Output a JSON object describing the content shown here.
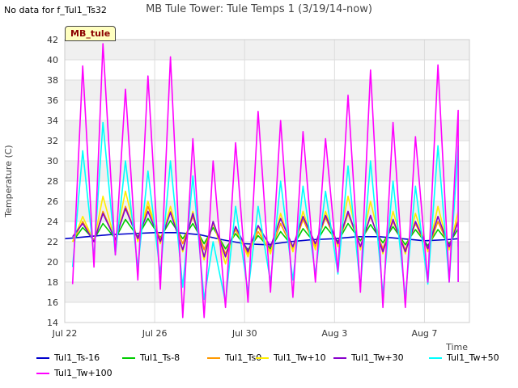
{
  "no_data_message": "No data for f_Tul1_Ts32",
  "site_badge": "MB_tule",
  "chart_data": {
    "type": "line",
    "title": "MB Tule Tower: Tule Temps 1 (3/19/14-now)",
    "xlabel": "Time",
    "ylabel": "Temperature (C)",
    "x_unit": "date",
    "x_start": "Jul 22",
    "x_end": "Aug 9",
    "xlim_days": [
      0,
      18
    ],
    "ylim": [
      14,
      42
    ],
    "yticks": [
      14,
      16,
      18,
      20,
      22,
      24,
      26,
      28,
      30,
      32,
      34,
      36,
      38,
      40,
      42
    ],
    "xticks": [
      {
        "day": 0,
        "label": "Jul 22"
      },
      {
        "day": 4,
        "label": "Jul 26"
      },
      {
        "day": 8,
        "label": "Jul 30"
      },
      {
        "day": 12,
        "label": "Aug 3"
      },
      {
        "day": 16,
        "label": "Aug 7"
      }
    ],
    "grid": true,
    "background_bands": true,
    "legend_position": "bottom",
    "daily_peak_day": [
      0.8,
      1.7,
      2.7,
      3.7,
      4.7,
      5.7,
      6.6,
      7.6,
      8.6,
      9.6,
      10.6,
      11.6,
      12.6,
      13.6,
      14.6,
      15.6,
      16.6,
      17.5
    ],
    "series": [
      {
        "name": "Tul1_Ts-16",
        "color": "#0000cc",
        "x": [
          0,
          1,
          2,
          3,
          4,
          5,
          6,
          7,
          8,
          9,
          10,
          11,
          12,
          13,
          14,
          15,
          16,
          17,
          17.5
        ],
        "y": [
          22.3,
          22.5,
          22.7,
          22.8,
          22.9,
          22.9,
          22.7,
          22.2,
          21.8,
          21.7,
          22.0,
          22.2,
          22.3,
          22.5,
          22.5,
          22.3,
          22.1,
          22.2,
          22.3
        ]
      },
      {
        "name": "Tul1_Ts-8",
        "color": "#00cc00",
        "daily_min": [
          22.0,
          22.2,
          22.3,
          22.5,
          22.4,
          22.3,
          21.8,
          21.3,
          21.2,
          21.3,
          21.5,
          21.8,
          22.0,
          22.1,
          21.9,
          21.7,
          21.6,
          21.8
        ],
        "daily_max": [
          23.4,
          23.8,
          24.2,
          24.3,
          24.1,
          23.8,
          23.4,
          22.8,
          22.6,
          23.0,
          23.3,
          23.5,
          23.8,
          23.7,
          23.5,
          23.2,
          23.2,
          23.3
        ]
      },
      {
        "name": "Tul1_Ts0",
        "color": "#ff9900",
        "daily_min": [
          22.0,
          22.0,
          22.2,
          22.3,
          22.2,
          21.8,
          21.2,
          20.8,
          20.8,
          21.0,
          21.2,
          21.5,
          21.6,
          21.5,
          21.3,
          21.2,
          21.2,
          21.5
        ],
        "daily_max": [
          24.0,
          25.0,
          25.5,
          25.5,
          25.0,
          24.5,
          23.8,
          23.2,
          23.0,
          23.8,
          24.2,
          24.4,
          24.8,
          24.5,
          24.0,
          23.8,
          24.0,
          24.2
        ]
      },
      {
        "name": "Tul1_Tw+10",
        "color": "#ffee00",
        "daily_min": [
          22.0,
          22.0,
          22.0,
          22.0,
          21.8,
          21.0,
          20.2,
          19.8,
          20.5,
          20.8,
          21.0,
          21.2,
          21.5,
          21.2,
          20.8,
          20.8,
          21.0,
          21.2
        ],
        "daily_max": [
          24.5,
          26.5,
          27.0,
          26.0,
          25.5,
          25.0,
          24.0,
          23.5,
          23.5,
          24.8,
          25.0,
          25.0,
          26.5,
          26.0,
          25.0,
          24.8,
          25.5,
          25.0
        ]
      },
      {
        "name": "Tul1_Tw+30",
        "color": "#8800cc",
        "daily_min": [
          22.5,
          22.0,
          22.2,
          22.3,
          22.0,
          21.2,
          20.5,
          20.5,
          21.0,
          21.5,
          21.5,
          21.8,
          21.8,
          21.5,
          21.0,
          21.0,
          21.3,
          21.5
        ],
        "daily_max": [
          23.8,
          24.8,
          25.3,
          25.0,
          24.9,
          24.8,
          24.0,
          23.5,
          23.6,
          24.3,
          24.5,
          24.6,
          25.0,
          24.6,
          24.2,
          24.0,
          24.5,
          24.0
        ]
      },
      {
        "name": "Tul1_Tw+50",
        "color": "#00ffff",
        "daily_min": [
          19.5,
          20.5,
          20.7,
          19.5,
          18.8,
          17.5,
          16.3,
          16.0,
          17.0,
          18.0,
          18.2,
          18.8,
          18.8,
          17.5,
          16.8,
          16.5,
          17.8,
          18.0
        ],
        "daily_max": [
          31.0,
          33.8,
          30.0,
          29.0,
          30.0,
          28.5,
          22.0,
          25.5,
          25.5,
          28.0,
          27.5,
          27.0,
          29.5,
          30.0,
          28.0,
          27.5,
          31.5,
          31.5
        ]
      },
      {
        "name": "Tul1_Tw+100",
        "color": "#ff00ff",
        "daily_min": [
          17.8,
          19.5,
          20.7,
          18.2,
          17.3,
          14.5,
          14.5,
          15.5,
          16.0,
          17.0,
          16.5,
          18.0,
          19.0,
          17.0,
          15.5,
          15.5,
          18.0,
          18.0
        ],
        "daily_max": [
          39.4,
          41.6,
          37.1,
          38.4,
          40.3,
          32.2,
          30.0,
          31.8,
          34.9,
          34.0,
          32.9,
          32.2,
          36.5,
          39.0,
          33.8,
          32.4,
          39.5,
          35.0
        ]
      }
    ]
  }
}
